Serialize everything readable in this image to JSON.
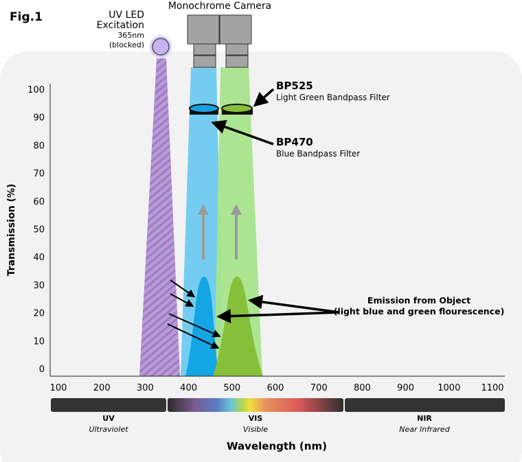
{
  "figure_label": "Fig.1",
  "camera_label": "Monochrome Camera",
  "led": {
    "line1": "UV LED",
    "line2": "Excitation",
    "line3": "365nm",
    "line4": "(blocked)"
  },
  "y_axis": {
    "label": "Transmission (%)",
    "ticks": [
      "100",
      "90",
      "80",
      "70",
      "60",
      "50",
      "40",
      "30",
      "20",
      "10",
      "0"
    ]
  },
  "x_axis": {
    "label": "Wavelength (nm)",
    "ticks": [
      "100",
      "200",
      "300",
      "400",
      "500",
      "600",
      "700",
      "800",
      "900",
      "1000",
      "1100"
    ]
  },
  "bands": [
    {
      "code": "UV",
      "name": "Ultraviolet"
    },
    {
      "code": "VIS",
      "name": "Visible"
    },
    {
      "code": "NIR",
      "name": "Near Infrared"
    }
  ],
  "filters": {
    "bp525": {
      "code": "BP525",
      "desc": "Light Green Bandpass Filter"
    },
    "bp470": {
      "code": "BP470",
      "desc": "Blue Bandpass Filter"
    }
  },
  "emission": {
    "line1": "Emission from Object",
    "line2": "(light blue and green flourescence)"
  },
  "colors": {
    "blue_beam": "#74cdf0",
    "green_beam": "#a8e48c",
    "blue_emission": "#14a5e4",
    "green_emission": "#86c03a",
    "uv": "#b89ad6"
  }
}
